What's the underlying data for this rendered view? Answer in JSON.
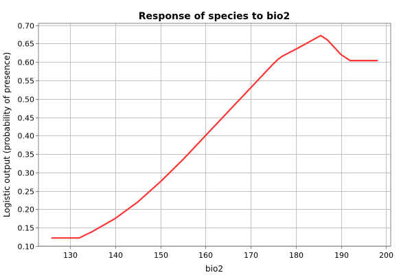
{
  "chart_data": {
    "type": "line",
    "title": "Response of species to bio2",
    "xlabel": "bio2",
    "ylabel": "Logistic output (probability of presence)",
    "xlim": [
      123,
      201
    ],
    "ylim": [
      0.1,
      0.705
    ],
    "xticks": [
      130,
      140,
      150,
      160,
      170,
      180,
      190,
      200
    ],
    "yticks": [
      0.1,
      0.15,
      0.2,
      0.25,
      0.3,
      0.35,
      0.4,
      0.45,
      0.5,
      0.55,
      0.6,
      0.65,
      0.7
    ],
    "grid": true,
    "series": [
      {
        "color": "#ff3333",
        "x": [
          126,
          132,
          135,
          140,
          145,
          150,
          155,
          160,
          165,
          170,
          175,
          176,
          177,
          180,
          183,
          185.5,
          187,
          190,
          192,
          198
        ],
        "y": [
          0.122,
          0.122,
          0.14,
          0.175,
          0.22,
          0.275,
          0.335,
          0.4,
          0.465,
          0.53,
          0.595,
          0.607,
          0.616,
          0.635,
          0.655,
          0.672,
          0.66,
          0.62,
          0.604,
          0.604
        ]
      }
    ]
  }
}
